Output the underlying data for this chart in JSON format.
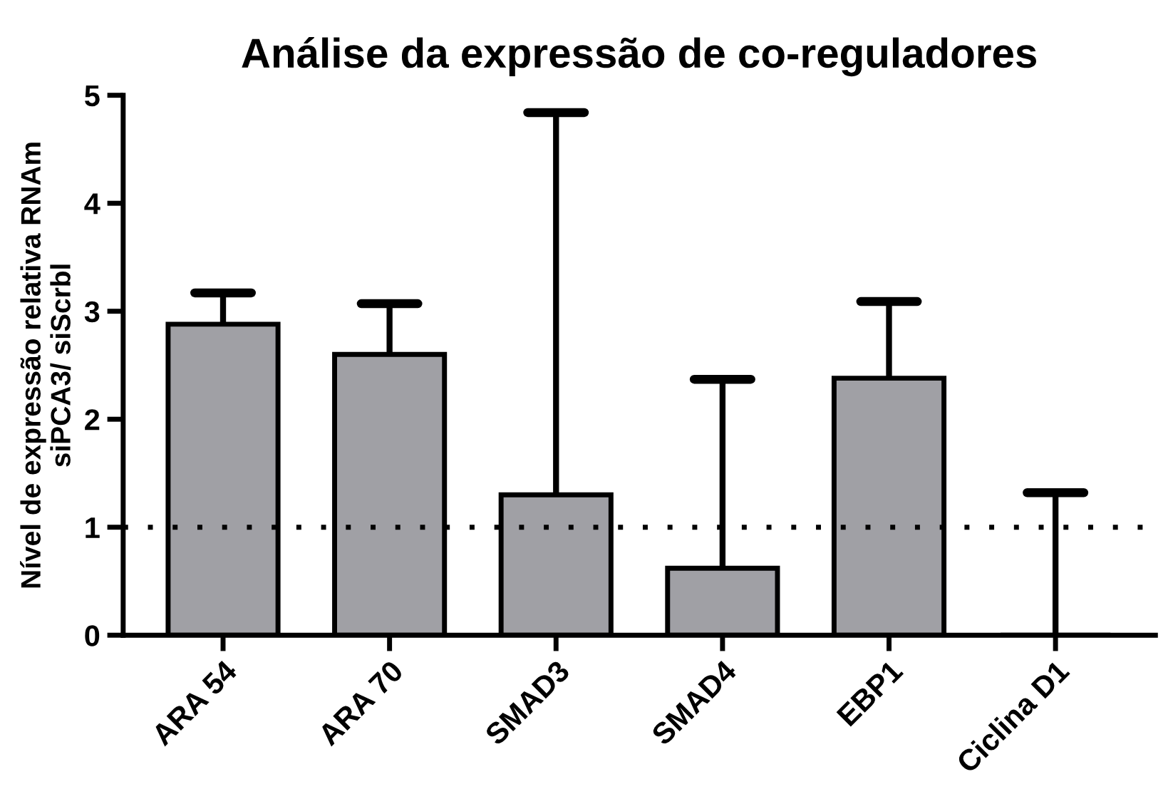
{
  "chart_data": {
    "type": "bar",
    "title": "Análise da expressão de co-reguladores",
    "ylabel": "Nível de expressão relativa RNAm\nsiPCA3/ siScrbl",
    "categories": [
      "ARA 54",
      "ARA 70",
      "SMAD3",
      "SMAD4",
      "EBP1",
      "Ciclina D1"
    ],
    "values": [
      2.88,
      2.6,
      1.3,
      0.62,
      2.38,
      0
    ],
    "errors": [
      [
        2.88,
        3.17
      ],
      [
        2.6,
        3.07
      ],
      [
        1.3,
        4.84
      ],
      [
        0.62,
        2.37
      ],
      [
        2.38,
        3.09
      ],
      [
        0,
        1.32
      ]
    ],
    "color": "#a0a0a5",
    "ylim": [
      0,
      5
    ],
    "yticks": [
      0,
      1,
      2,
      3,
      4,
      5
    ],
    "ref_lines": [
      {
        "axis": "y",
        "value": 1,
        "line_style": "dotted",
        "color": "#000000"
      }
    ],
    "grid": false
  }
}
